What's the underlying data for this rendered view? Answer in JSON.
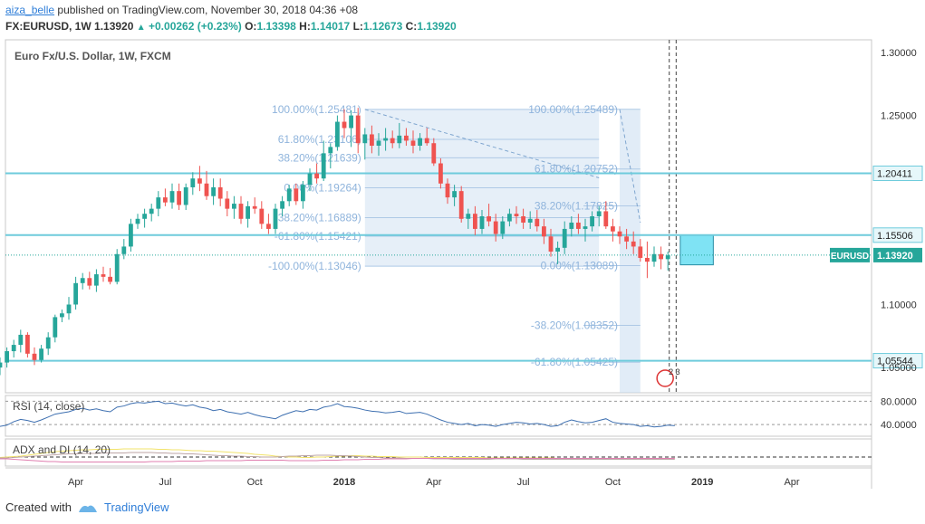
{
  "header": {
    "username": "aiza_belle",
    "published_text": "published on TradingView.com, November 30, 2018 04:36 +08",
    "symbol": "FX:EURUSD, 1W",
    "last": "1.13920",
    "change": "+0.00262 (+0.23%)",
    "o_label": "O:",
    "o": "1.13398",
    "h_label": "H:",
    "h": "1.14017",
    "l_label": "L:",
    "l": "1.12673",
    "c_label": "C:",
    "c": "1.13920"
  },
  "footer": {
    "created_with": "Created with",
    "brand": "TradingView"
  },
  "colors": {
    "up": "#26a69a",
    "down": "#ef5350",
    "hline": "#6ecbdc",
    "fib": "#c8dcf0",
    "accent": "#2f7ed8"
  },
  "chart_data": {
    "type": "candlestick",
    "title": "Euro Fx/U.S. Dollar, 1W, FXCM",
    "ylim": [
      1.03,
      1.31
    ],
    "y_ticks": [
      "1.30000",
      "1.25000",
      "1.10000",
      "1.05000"
    ],
    "x_ticks": [
      "Apr",
      "Jul",
      "Oct",
      "2018",
      "Apr",
      "Jul",
      "Oct",
      "2019",
      "Apr"
    ],
    "x_tick_weeks": [
      -39,
      -26,
      -13,
      0,
      13,
      26,
      39,
      52,
      65
    ],
    "price_levels": [
      {
        "label": "1.20411",
        "value": 1.20411
      },
      {
        "label": "1.15506",
        "value": 1.15506
      },
      {
        "label": "1.05544",
        "value": 1.05544
      }
    ],
    "current_price": {
      "label": "EURUSD",
      "value_label": "1.13920",
      "value": 1.1392
    },
    "fib_1": {
      "start_week": 3,
      "end_week": 37,
      "anchor_high": 1.25481,
      "anchor_low": 1.13046,
      "levels": [
        {
          "label": "100.00%(1.25481)",
          "value": 1.25481
        },
        {
          "label": "61.80%(1.23106)",
          "value": 1.23106
        },
        {
          "label": "38.20%(1.21639)",
          "value": 1.21639
        },
        {
          "label": "0.00%(1.19264)",
          "value": 1.19264
        },
        {
          "label": "-38.20%(1.16889)",
          "value": 1.16889
        },
        {
          "label": "-61.80%(1.15421)",
          "value": 1.15421
        },
        {
          "label": "-100.00%(1.13046)",
          "value": 1.13046
        }
      ]
    },
    "fib_2": {
      "start_week": 40,
      "end_week": 43,
      "anchor_high": 1.25489,
      "anchor_low": 1.13089,
      "levels": [
        {
          "label": "100.00%(1.25489)",
          "value": 1.25489
        },
        {
          "label": "61.80%(1.20752)",
          "value": 1.20752
        },
        {
          "label": "38.20%(1.17825)",
          "value": 1.17825
        },
        {
          "label": "0.00%(1.13089)",
          "value": 1.13089
        },
        {
          "label": "-38.20%(1.08352)",
          "value": 1.08352
        },
        {
          "label": "-61.80%(1.05425)",
          "value": 1.05425
        }
      ]
    },
    "candles": [
      {
        "o": 1.064,
        "h": 1.074,
        "l": 1.052,
        "c": 1.07
      },
      {
        "o": 1.07,
        "h": 1.076,
        "l": 1.055,
        "c": 1.058
      },
      {
        "o": 1.058,
        "h": 1.063,
        "l": 1.046,
        "c": 1.052
      },
      {
        "o": 1.052,
        "h": 1.06,
        "l": 1.045,
        "c": 1.056
      },
      {
        "o": 1.056,
        "h": 1.062,
        "l": 1.048,
        "c": 1.05
      },
      {
        "o": 1.05,
        "h": 1.058,
        "l": 1.044,
        "c": 1.054
      },
      {
        "o": 1.054,
        "h": 1.066,
        "l": 1.05,
        "c": 1.063
      },
      {
        "o": 1.063,
        "h": 1.072,
        "l": 1.058,
        "c": 1.068
      },
      {
        "o": 1.068,
        "h": 1.08,
        "l": 1.062,
        "c": 1.076
      },
      {
        "o": 1.076,
        "h": 1.078,
        "l": 1.058,
        "c": 1.061
      },
      {
        "o": 1.061,
        "h": 1.066,
        "l": 1.052,
        "c": 1.056
      },
      {
        "o": 1.056,
        "h": 1.068,
        "l": 1.054,
        "c": 1.065
      },
      {
        "o": 1.065,
        "h": 1.078,
        "l": 1.06,
        "c": 1.074
      },
      {
        "o": 1.074,
        "h": 1.092,
        "l": 1.07,
        "c": 1.09
      },
      {
        "o": 1.09,
        "h": 1.096,
        "l": 1.086,
        "c": 1.093
      },
      {
        "o": 1.093,
        "h": 1.106,
        "l": 1.088,
        "c": 1.1
      },
      {
        "o": 1.1,
        "h": 1.122,
        "l": 1.096,
        "c": 1.117
      },
      {
        "o": 1.117,
        "h": 1.125,
        "l": 1.112,
        "c": 1.121
      },
      {
        "o": 1.121,
        "h": 1.126,
        "l": 1.112,
        "c": 1.115
      },
      {
        "o": 1.115,
        "h": 1.128,
        "l": 1.11,
        "c": 1.124
      },
      {
        "o": 1.124,
        "h": 1.13,
        "l": 1.118,
        "c": 1.122
      },
      {
        "o": 1.122,
        "h": 1.129,
        "l": 1.116,
        "c": 1.118
      },
      {
        "o": 1.118,
        "h": 1.144,
        "l": 1.116,
        "c": 1.14
      },
      {
        "o": 1.14,
        "h": 1.152,
        "l": 1.136,
        "c": 1.146
      },
      {
        "o": 1.146,
        "h": 1.168,
        "l": 1.142,
        "c": 1.164
      },
      {
        "o": 1.164,
        "h": 1.172,
        "l": 1.16,
        "c": 1.168
      },
      {
        "o": 1.168,
        "h": 1.176,
        "l": 1.161,
        "c": 1.172
      },
      {
        "o": 1.172,
        "h": 1.18,
        "l": 1.166,
        "c": 1.176
      },
      {
        "o": 1.176,
        "h": 1.19,
        "l": 1.17,
        "c": 1.185
      },
      {
        "o": 1.185,
        "h": 1.192,
        "l": 1.178,
        "c": 1.181
      },
      {
        "o": 1.181,
        "h": 1.196,
        "l": 1.176,
        "c": 1.19
      },
      {
        "o": 1.19,
        "h": 1.196,
        "l": 1.175,
        "c": 1.179
      },
      {
        "o": 1.179,
        "h": 1.196,
        "l": 1.175,
        "c": 1.193
      },
      {
        "o": 1.193,
        "h": 1.205,
        "l": 1.187,
        "c": 1.2
      },
      {
        "o": 1.2,
        "h": 1.21,
        "l": 1.19,
        "c": 1.196
      },
      {
        "o": 1.196,
        "h": 1.206,
        "l": 1.183,
        "c": 1.186
      },
      {
        "o": 1.186,
        "h": 1.2,
        "l": 1.179,
        "c": 1.193
      },
      {
        "o": 1.193,
        "h": 1.2,
        "l": 1.178,
        "c": 1.184
      },
      {
        "o": 1.184,
        "h": 1.19,
        "l": 1.17,
        "c": 1.176
      },
      {
        "o": 1.176,
        "h": 1.186,
        "l": 1.168,
        "c": 1.18
      },
      {
        "o": 1.18,
        "h": 1.186,
        "l": 1.164,
        "c": 1.168
      },
      {
        "o": 1.168,
        "h": 1.182,
        "l": 1.161,
        "c": 1.178
      },
      {
        "o": 1.178,
        "h": 1.185,
        "l": 1.172,
        "c": 1.176
      },
      {
        "o": 1.176,
        "h": 1.182,
        "l": 1.16,
        "c": 1.164
      },
      {
        "o": 1.164,
        "h": 1.172,
        "l": 1.156,
        "c": 1.16
      },
      {
        "o": 1.16,
        "h": 1.18,
        "l": 1.156,
        "c": 1.176
      },
      {
        "o": 1.176,
        "h": 1.186,
        "l": 1.17,
        "c": 1.182
      },
      {
        "o": 1.182,
        "h": 1.195,
        "l": 1.178,
        "c": 1.192
      },
      {
        "o": 1.192,
        "h": 1.196,
        "l": 1.179,
        "c": 1.182
      },
      {
        "o": 1.182,
        "h": 1.198,
        "l": 1.176,
        "c": 1.195
      },
      {
        "o": 1.195,
        "h": 1.208,
        "l": 1.19,
        "c": 1.204
      },
      {
        "o": 1.204,
        "h": 1.212,
        "l": 1.196,
        "c": 1.2
      },
      {
        "o": 1.2,
        "h": 1.23,
        "l": 1.198,
        "c": 1.22
      },
      {
        "o": 1.22,
        "h": 1.228,
        "l": 1.208,
        "c": 1.225
      },
      {
        "o": 1.225,
        "h": 1.25,
        "l": 1.222,
        "c": 1.245
      },
      {
        "o": 1.245,
        "h": 1.255,
        "l": 1.232,
        "c": 1.24
      },
      {
        "o": 1.24,
        "h": 1.254,
        "l": 1.225,
        "c": 1.25
      },
      {
        "o": 1.25,
        "h": 1.256,
        "l": 1.22,
        "c": 1.228
      },
      {
        "o": 1.228,
        "h": 1.24,
        "l": 1.215,
        "c": 1.235
      },
      {
        "o": 1.235,
        "h": 1.242,
        "l": 1.22,
        "c": 1.226
      },
      {
        "o": 1.226,
        "h": 1.236,
        "l": 1.218,
        "c": 1.23
      },
      {
        "o": 1.23,
        "h": 1.24,
        "l": 1.222,
        "c": 1.232
      },
      {
        "o": 1.232,
        "h": 1.238,
        "l": 1.224,
        "c": 1.228
      },
      {
        "o": 1.228,
        "h": 1.244,
        "l": 1.224,
        "c": 1.234
      },
      {
        "o": 1.234,
        "h": 1.24,
        "l": 1.226,
        "c": 1.23
      },
      {
        "o": 1.23,
        "h": 1.238,
        "l": 1.22,
        "c": 1.226
      },
      {
        "o": 1.226,
        "h": 1.236,
        "l": 1.222,
        "c": 1.232
      },
      {
        "o": 1.232,
        "h": 1.24,
        "l": 1.226,
        "c": 1.228
      },
      {
        "o": 1.228,
        "h": 1.232,
        "l": 1.21,
        "c": 1.212
      },
      {
        "o": 1.212,
        "h": 1.216,
        "l": 1.192,
        "c": 1.196
      },
      {
        "o": 1.196,
        "h": 1.2,
        "l": 1.18,
        "c": 1.185
      },
      {
        "o": 1.185,
        "h": 1.195,
        "l": 1.178,
        "c": 1.19
      },
      {
        "o": 1.19,
        "h": 1.194,
        "l": 1.165,
        "c": 1.168
      },
      {
        "o": 1.168,
        "h": 1.176,
        "l": 1.16,
        "c": 1.172
      },
      {
        "o": 1.172,
        "h": 1.178,
        "l": 1.155,
        "c": 1.16
      },
      {
        "o": 1.16,
        "h": 1.175,
        "l": 1.156,
        "c": 1.17
      },
      {
        "o": 1.17,
        "h": 1.18,
        "l": 1.162,
        "c": 1.166
      },
      {
        "o": 1.166,
        "h": 1.172,
        "l": 1.15,
        "c": 1.156
      },
      {
        "o": 1.156,
        "h": 1.17,
        "l": 1.152,
        "c": 1.166
      },
      {
        "o": 1.166,
        "h": 1.176,
        "l": 1.162,
        "c": 1.172
      },
      {
        "o": 1.172,
        "h": 1.178,
        "l": 1.164,
        "c": 1.17
      },
      {
        "o": 1.17,
        "h": 1.176,
        "l": 1.16,
        "c": 1.165
      },
      {
        "o": 1.165,
        "h": 1.174,
        "l": 1.16,
        "c": 1.168
      },
      {
        "o": 1.168,
        "h": 1.175,
        "l": 1.158,
        "c": 1.162
      },
      {
        "o": 1.162,
        "h": 1.168,
        "l": 1.148,
        "c": 1.154
      },
      {
        "o": 1.154,
        "h": 1.16,
        "l": 1.138,
        "c": 1.142
      },
      {
        "o": 1.142,
        "h": 1.15,
        "l": 1.132,
        "c": 1.145
      },
      {
        "o": 1.145,
        "h": 1.166,
        "l": 1.14,
        "c": 1.16
      },
      {
        "o": 1.16,
        "h": 1.17,
        "l": 1.154,
        "c": 1.165
      },
      {
        "o": 1.165,
        "h": 1.172,
        "l": 1.156,
        "c": 1.16
      },
      {
        "o": 1.16,
        "h": 1.168,
        "l": 1.15,
        "c": 1.162
      },
      {
        "o": 1.162,
        "h": 1.174,
        "l": 1.158,
        "c": 1.17
      },
      {
        "o": 1.17,
        "h": 1.178,
        "l": 1.162,
        "c": 1.174
      },
      {
        "o": 1.174,
        "h": 1.182,
        "l": 1.16,
        "c": 1.162
      },
      {
        "o": 1.162,
        "h": 1.168,
        "l": 1.15,
        "c": 1.158
      },
      {
        "o": 1.158,
        "h": 1.162,
        "l": 1.148,
        "c": 1.154
      },
      {
        "o": 1.154,
        "h": 1.16,
        "l": 1.144,
        "c": 1.15
      },
      {
        "o": 1.15,
        "h": 1.158,
        "l": 1.14,
        "c": 1.146
      },
      {
        "o": 1.146,
        "h": 1.152,
        "l": 1.134,
        "c": 1.137
      },
      {
        "o": 1.137,
        "h": 1.15,
        "l": 1.121,
        "c": 1.134
      },
      {
        "o": 1.134,
        "h": 1.146,
        "l": 1.13,
        "c": 1.14
      },
      {
        "o": 1.14,
        "h": 1.146,
        "l": 1.128,
        "c": 1.136
      },
      {
        "o": 1.136,
        "h": 1.142,
        "l": 1.127,
        "c": 1.139
      }
    ],
    "rsi": {
      "label": "RSI (14, close)",
      "y_ticks": [
        "80.0000",
        "40.0000"
      ],
      "ylim": [
        20,
        90
      ],
      "values": [
        44,
        46,
        41,
        38,
        40,
        37,
        39,
        45,
        49,
        47,
        44,
        48,
        53,
        58,
        60,
        62,
        66,
        68,
        65,
        67,
        64,
        62,
        70,
        72,
        76,
        78,
        77,
        79,
        80,
        76,
        77,
        74,
        72,
        74,
        70,
        68,
        64,
        66,
        62,
        60,
        58,
        61,
        57,
        54,
        52,
        50,
        56,
        60,
        64,
        62,
        66,
        65,
        70,
        72,
        76,
        71,
        70,
        68,
        65,
        63,
        62,
        60,
        61,
        63,
        59,
        60,
        61,
        58,
        53,
        48,
        44,
        42,
        40,
        42,
        38,
        40,
        39,
        37,
        40,
        42,
        44,
        43,
        41,
        42,
        40,
        37,
        38,
        44,
        48,
        45,
        43,
        44,
        47,
        50,
        44,
        42,
        41,
        40,
        37,
        38,
        36,
        37,
        39,
        38
      ]
    },
    "adx": {
      "label": "ADX and DI (14, 20)",
      "reference_level": 20,
      "ylim": [
        0,
        60
      ],
      "adx": [
        20,
        20,
        19,
        19,
        19,
        19,
        20,
        21,
        22,
        24,
        26,
        28,
        30,
        32,
        33,
        34,
        35,
        36,
        36,
        37,
        37,
        37,
        37,
        38,
        38,
        38,
        38,
        38,
        37,
        37,
        36,
        36,
        35,
        34,
        34,
        33,
        33,
        32,
        31,
        30,
        29,
        28,
        26,
        25,
        24,
        22,
        21,
        20,
        20,
        19,
        19,
        20,
        20,
        21,
        22,
        22,
        23,
        23,
        22,
        22,
        21,
        21,
        21,
        20,
        20,
        20,
        20,
        19,
        19,
        19,
        19,
        19,
        19,
        19,
        19,
        19,
        18,
        18,
        18,
        18,
        18,
        18,
        18,
        18,
        18,
        18,
        17,
        17,
        17,
        17,
        17,
        17,
        17,
        17,
        17,
        17,
        17,
        17,
        17,
        17,
        17,
        17,
        17,
        17
      ],
      "di_plus": [
        16,
        16,
        16,
        17,
        17,
        18,
        18,
        19,
        20,
        21,
        22,
        23,
        24,
        25,
        26,
        27,
        27,
        28,
        28,
        28,
        29,
        29,
        29,
        29,
        30,
        30,
        30,
        30,
        29,
        29,
        28,
        28,
        27,
        27,
        26,
        25,
        24,
        23,
        23,
        22,
        22,
        21,
        21,
        20,
        20,
        20,
        21,
        22,
        22,
        23,
        23,
        24,
        24,
        24,
        23,
        23,
        22,
        21,
        20,
        19,
        19,
        18,
        18,
        18,
        17,
        17,
        17,
        17,
        16,
        16,
        16,
        15,
        15,
        15,
        15,
        15,
        15,
        16,
        16,
        16,
        16,
        15,
        15,
        15,
        15,
        15,
        15,
        15,
        15,
        15,
        15,
        15,
        15,
        15,
        15,
        15,
        15,
        15,
        15,
        15,
        15,
        15,
        15,
        15
      ],
      "di_minus": [
        18,
        18,
        18,
        17,
        17,
        16,
        16,
        15,
        14,
        13,
        12,
        11,
        10,
        10,
        9,
        9,
        9,
        9,
        9,
        9,
        9,
        9,
        9,
        9,
        9,
        9,
        9,
        10,
        10,
        10,
        10,
        11,
        11,
        11,
        11,
        12,
        12,
        12,
        12,
        12,
        12,
        13,
        13,
        13,
        13,
        13,
        13,
        12,
        12,
        12,
        12,
        12,
        13,
        13,
        13,
        14,
        14,
        14,
        15,
        15,
        15,
        16,
        16,
        16,
        16,
        17,
        17,
        17,
        17,
        17,
        17,
        17,
        17,
        17,
        17,
        17,
        17,
        17,
        17,
        17,
        17,
        17,
        17,
        17,
        17,
        17,
        17,
        17,
        17,
        17,
        17,
        17,
        17,
        17,
        17,
        17,
        17,
        17,
        17,
        17,
        17,
        17,
        17,
        17
      ]
    },
    "event_badge": "2 3"
  }
}
